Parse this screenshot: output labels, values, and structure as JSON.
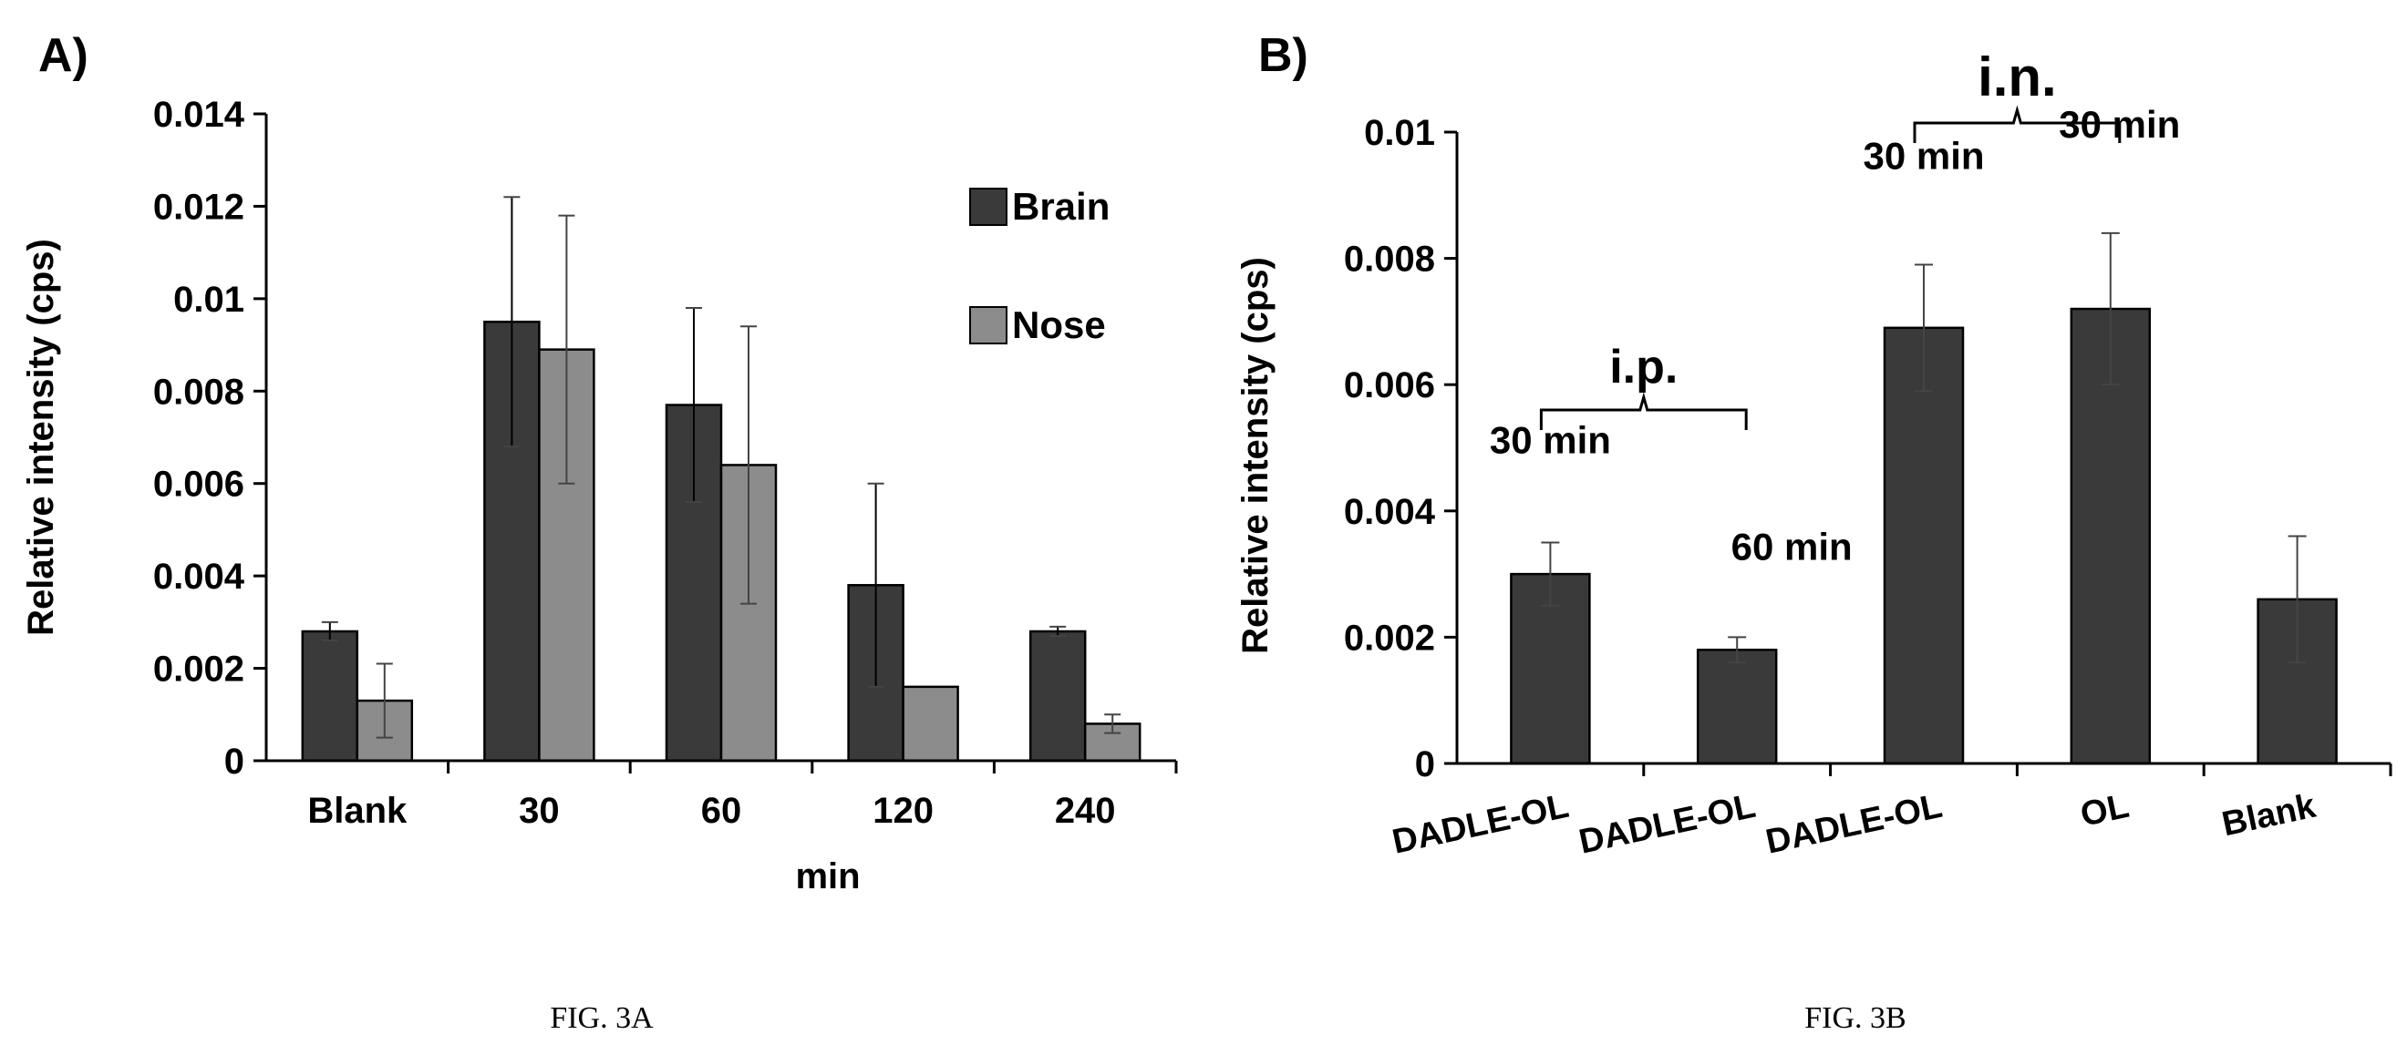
{
  "chart_data": [
    {
      "type": "bar",
      "panel_label": "A)",
      "caption": "FIG. 3A",
      "categories": [
        "Blank",
        "30",
        "60",
        "120",
        "240"
      ],
      "xlabel": "min",
      "ylabel": "Relative intensity (cps)",
      "ylim": [
        0,
        0.014
      ],
      "yticks": [
        "0",
        "0.002",
        "0.004",
        "0.006",
        "0.008",
        "0.01",
        "0.012",
        "0.014"
      ],
      "legend_position": "top-right",
      "grid": false,
      "series": [
        {
          "name": "Brain",
          "color": "#3a3a3a",
          "values": [
            0.0028,
            0.0095,
            0.0077,
            0.0038,
            0.0028
          ],
          "errors": [
            0.0002,
            0.0027,
            0.0021,
            0.0022,
            0.0001
          ]
        },
        {
          "name": "Nose",
          "color": "#8c8c8c",
          "values": [
            0.0013,
            0.0089,
            0.0064,
            0.0016,
            0.0008
          ],
          "errors": [
            0.0008,
            0.0029,
            0.003,
            0.0,
            0.0002
          ]
        }
      ]
    },
    {
      "type": "bar",
      "panel_label": "B)",
      "caption": "FIG. 3B",
      "categories": [
        "DADLE-OL",
        "DADLE-OL",
        "DADLE-OL",
        "OL",
        "Blank"
      ],
      "xlabel": "",
      "ylabel": "Relative intensity (cps)",
      "ylim": [
        0,
        0.01
      ],
      "yticks": [
        "0",
        "0.002",
        "0.004",
        "0.006",
        "0.008",
        "0.01"
      ],
      "grid": false,
      "series": [
        {
          "name": "",
          "color": "#3a3a3a",
          "values": [
            0.003,
            0.0018,
            0.0069,
            0.0072,
            0.0026
          ],
          "errors": [
            0.0005,
            0.0002,
            0.001,
            0.0012,
            0.001
          ]
        }
      ],
      "annotations": [
        {
          "text": "30 min",
          "bar": 0
        },
        {
          "text": "60 min",
          "bar": 1
        },
        {
          "text": "30 min",
          "bar": 2
        },
        {
          "text": "30 min",
          "bar": 3
        }
      ],
      "brackets": [
        {
          "text": "i.p.",
          "from_bar": 0,
          "to_bar": 1
        },
        {
          "text": "i.n.",
          "from_bar": 2,
          "to_bar": 3
        }
      ]
    }
  ]
}
